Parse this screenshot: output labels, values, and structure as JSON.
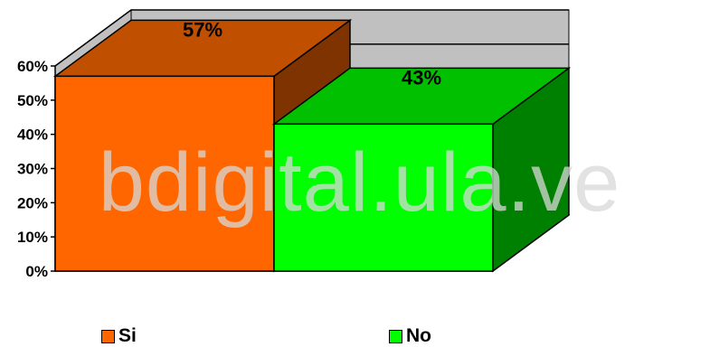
{
  "watermark": "bdigital.ula.ve",
  "colors": {
    "si_front": "#ff6600",
    "si_top": "#c05000",
    "si_side": "#7f3300",
    "no_front": "#00ff00",
    "no_top": "#00c000",
    "no_side": "#008000",
    "wall": "#c0c0c0",
    "floor": "#c0c0c0"
  },
  "legend": [
    {
      "label": "Si",
      "color": "#ff6600"
    },
    {
      "label": "No",
      "color": "#00ff00"
    }
  ],
  "chart_data": {
    "type": "bar",
    "style": "3d",
    "categories": [
      "Si",
      "No"
    ],
    "values": [
      57,
      43
    ],
    "data_labels": [
      "57%",
      "43%"
    ],
    "y_ticks": [
      "0%",
      "10%",
      "20%",
      "30%",
      "40%",
      "50%",
      "60%"
    ],
    "ylim": [
      0,
      60
    ],
    "grid": true,
    "legend_position": "bottom",
    "title": "",
    "xlabel": "",
    "ylabel": ""
  }
}
